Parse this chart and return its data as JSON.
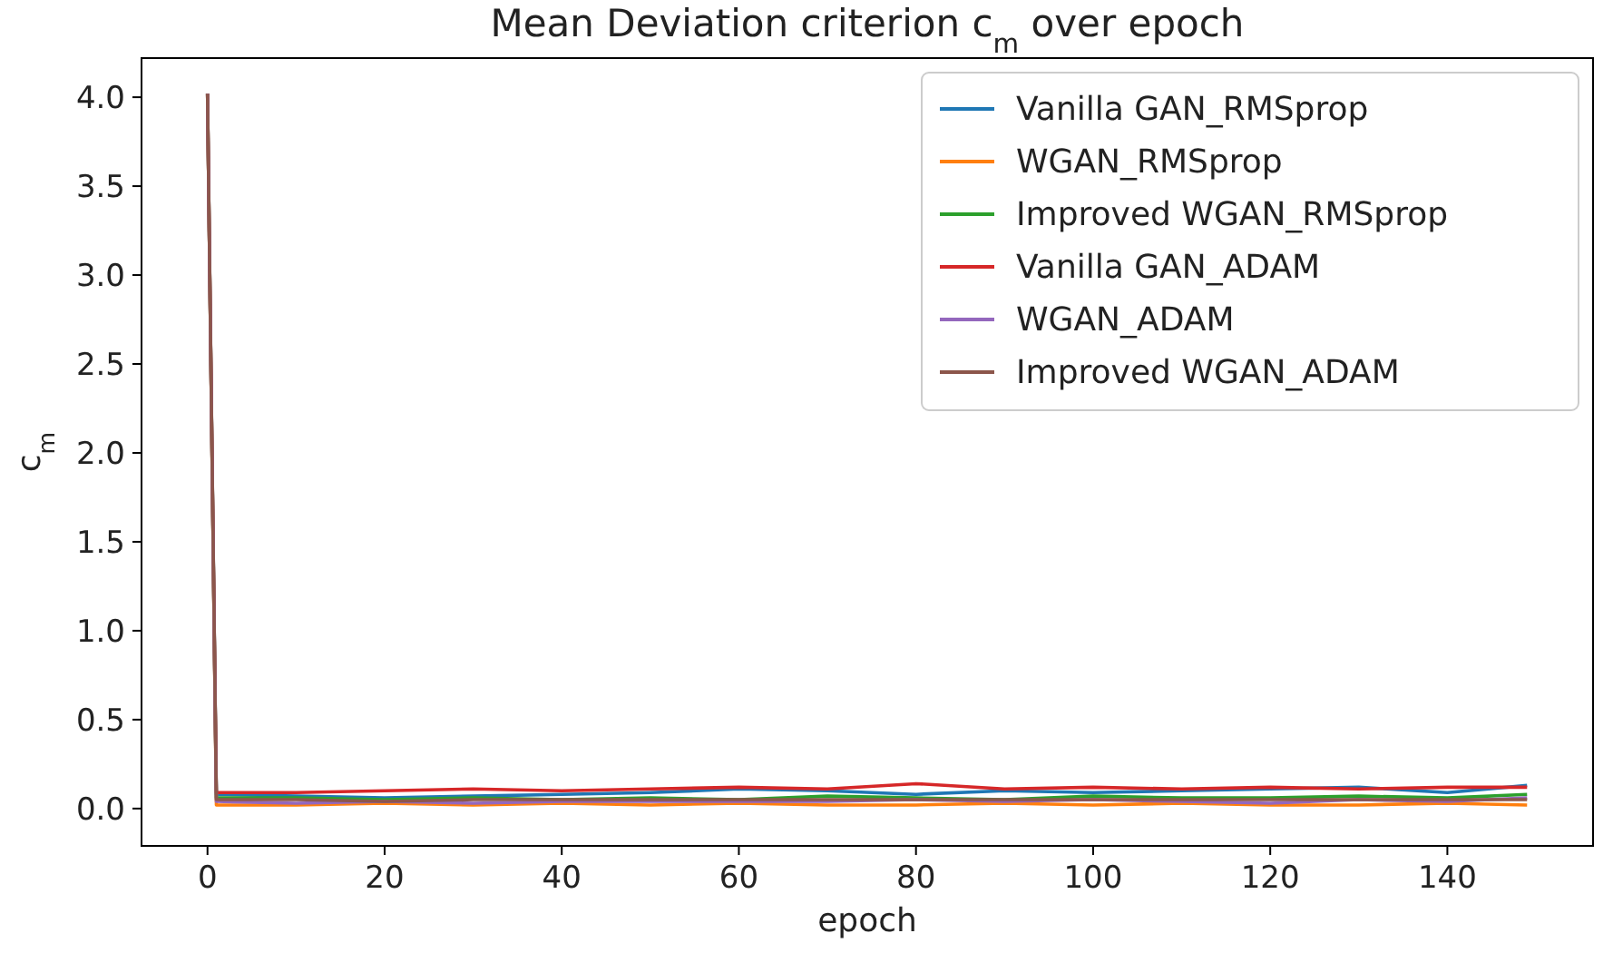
{
  "chart_data": {
    "type": "line",
    "title": "Mean Deviation criterion c$_{m}$ over epoch",
    "xlabel": "epoch",
    "ylabel": "c$_{m}$",
    "x": [
      0,
      1,
      10,
      20,
      30,
      40,
      50,
      60,
      70,
      80,
      90,
      100,
      110,
      120,
      130,
      140,
      149
    ],
    "xlim": [
      -7.45,
      156.45
    ],
    "xticks": [
      0,
      20,
      40,
      60,
      80,
      100,
      120,
      140
    ],
    "ylim": [
      -0.21,
      4.22
    ],
    "yticks": [
      {
        "value": 0,
        "label": "0.0"
      },
      {
        "value": 0.5,
        "label": "0.5"
      },
      {
        "value": 1,
        "label": "1.0"
      },
      {
        "value": 1.5,
        "label": "1.5"
      },
      {
        "value": 2,
        "label": "2.0"
      },
      {
        "value": 2.5,
        "label": "2.5"
      },
      {
        "value": 3,
        "label": "3.0"
      },
      {
        "value": 3.5,
        "label": "3.5"
      },
      {
        "value": 4,
        "label": "4.0"
      }
    ],
    "legend": "top right",
    "grid": false,
    "marker": "none",
    "line_style": "solid",
    "series": [
      {
        "name": "Vanilla GAN_RMSprop",
        "color": "#1f77b4",
        "values": [
          4.02,
          0.08,
          0.07,
          0.06,
          0.07,
          0.08,
          0.09,
          0.11,
          0.1,
          0.08,
          0.1,
          0.09,
          0.1,
          0.11,
          0.12,
          0.09,
          0.13
        ]
      },
      {
        "name": "WGAN_RMSprop",
        "color": "#ff7f0e",
        "values": [
          4.02,
          0.02,
          0.02,
          0.03,
          0.02,
          0.03,
          0.02,
          0.03,
          0.02,
          0.02,
          0.03,
          0.02,
          0.03,
          0.02,
          0.02,
          0.03,
          0.02
        ]
      },
      {
        "name": "Improved WGAN_RMSprop",
        "color": "#2ca02c",
        "values": [
          4.02,
          0.06,
          0.06,
          0.05,
          0.06,
          0.05,
          0.06,
          0.05,
          0.07,
          0.06,
          0.05,
          0.07,
          0.06,
          0.06,
          0.07,
          0.06,
          0.08
        ]
      },
      {
        "name": "Vanilla GAN_ADAM",
        "color": "#d62728",
        "values": [
          4.02,
          0.09,
          0.09,
          0.1,
          0.11,
          0.1,
          0.11,
          0.12,
          0.11,
          0.14,
          0.11,
          0.12,
          0.11,
          0.12,
          0.11,
          0.12,
          0.12
        ]
      },
      {
        "name": "WGAN_ADAM",
        "color": "#9467bd",
        "values": [
          4.02,
          0.04,
          0.03,
          0.04,
          0.03,
          0.04,
          0.04,
          0.04,
          0.04,
          0.05,
          0.04,
          0.05,
          0.04,
          0.03,
          0.05,
          0.04,
          0.06
        ]
      },
      {
        "name": "Improved WGAN_ADAM",
        "color": "#8c564b",
        "values": [
          4.02,
          0.05,
          0.05,
          0.04,
          0.05,
          0.05,
          0.05,
          0.05,
          0.05,
          0.05,
          0.05,
          0.05,
          0.05,
          0.05,
          0.05,
          0.05,
          0.05
        ]
      }
    ]
  }
}
